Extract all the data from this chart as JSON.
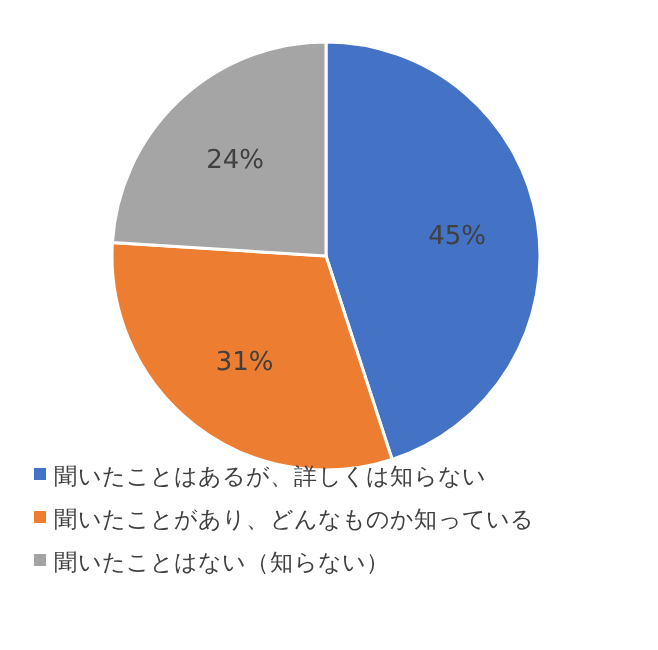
{
  "chart_data": {
    "type": "pie",
    "categories": [
      "聞いたことはあるが、詳しくは知らない",
      "聞いたことがあり、どんなものか知っている",
      "聞いたことはない（知らない）"
    ],
    "values": [
      45,
      31,
      24
    ],
    "colors": [
      "#4472c4",
      "#ed7d31",
      "#a5a5a5"
    ],
    "value_labels": [
      "45%",
      "31%",
      "24%"
    ],
    "legend": "bottom"
  }
}
